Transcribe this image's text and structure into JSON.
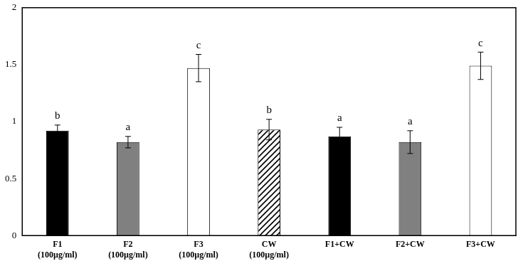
{
  "chart_data": {
    "type": "bar",
    "categories": [
      "F1\n(100µg/ml)",
      "F2\n(100µg/ml)",
      "F3\n(100µg/ml)",
      "CW\n(100µg/ml)",
      "F1+CW",
      "F2+CW",
      "F3+CW"
    ],
    "values": [
      0.92,
      0.82,
      1.47,
      0.93,
      0.87,
      0.82,
      1.49
    ],
    "errors": [
      0.05,
      0.05,
      0.12,
      0.09,
      0.08,
      0.1,
      0.12
    ],
    "annotations": [
      "b",
      "a",
      "c",
      "b",
      "a",
      "a",
      "c"
    ],
    "colors": [
      "#000000",
      "#808080",
      "#ffffff",
      "#ffffff",
      "#000000",
      "#808080",
      "#ffffff"
    ],
    "ylim": [
      0,
      2
    ],
    "yticks": [
      0,
      0.5,
      1,
      1.5,
      2
    ],
    "grid": false
  }
}
